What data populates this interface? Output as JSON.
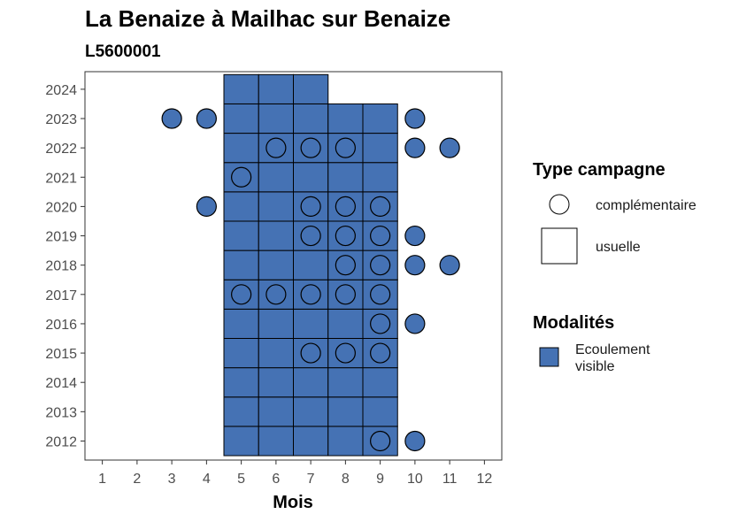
{
  "colors": {
    "fill": "#4572b4",
    "stroke": "#000000",
    "background": "#ffffff",
    "panel_border": "#333333",
    "tick_text": "#4d4d4d"
  },
  "chart_data": {
    "type": "heatmap",
    "title": "La Benaize à Mailhac sur Benaize",
    "subtitle": "L5600001",
    "xlabel": "Mois",
    "ylabel": "",
    "x_ticks": [
      1,
      2,
      3,
      4,
      5,
      6,
      7,
      8,
      9,
      10,
      11,
      12
    ],
    "y_ticks": [
      2012,
      2013,
      2014,
      2015,
      2016,
      2017,
      2018,
      2019,
      2020,
      2021,
      2022,
      2023,
      2024
    ],
    "xlim": [
      0.5,
      12.5
    ],
    "ylim": [
      2011.35,
      2024.6
    ],
    "grid": false,
    "usuelle": {
      "months": [
        5,
        6,
        7,
        8,
        9
      ],
      "years": [
        2012,
        2013,
        2014,
        2015,
        2016,
        2017,
        2018,
        2019,
        2020,
        2021,
        2022,
        2023
      ],
      "extra": [
        {
          "month": 5,
          "year": 2024
        },
        {
          "month": 6,
          "year": 2024
        },
        {
          "month": 7,
          "year": 2024
        }
      ],
      "modalite": "Ecoulement visible"
    },
    "complementaire": [
      {
        "month": 3,
        "year": 2023
      },
      {
        "month": 4,
        "year": 2023
      },
      {
        "month": 10,
        "year": 2023
      },
      {
        "month": 6,
        "year": 2022
      },
      {
        "month": 7,
        "year": 2022
      },
      {
        "month": 8,
        "year": 2022
      },
      {
        "month": 10,
        "year": 2022
      },
      {
        "month": 11,
        "year": 2022
      },
      {
        "month": 5,
        "year": 2021
      },
      {
        "month": 4,
        "year": 2020
      },
      {
        "month": 7,
        "year": 2020
      },
      {
        "month": 8,
        "year": 2020
      },
      {
        "month": 9,
        "year": 2020
      },
      {
        "month": 7,
        "year": 2019
      },
      {
        "month": 8,
        "year": 2019
      },
      {
        "month": 9,
        "year": 2019
      },
      {
        "month": 10,
        "year": 2019
      },
      {
        "month": 8,
        "year": 2018
      },
      {
        "month": 9,
        "year": 2018
      },
      {
        "month": 10,
        "year": 2018
      },
      {
        "month": 11,
        "year": 2018
      },
      {
        "month": 5,
        "year": 2017
      },
      {
        "month": 6,
        "year": 2017
      },
      {
        "month": 7,
        "year": 2017
      },
      {
        "month": 8,
        "year": 2017
      },
      {
        "month": 9,
        "year": 2017
      },
      {
        "month": 9,
        "year": 2016
      },
      {
        "month": 10,
        "year": 2016
      },
      {
        "month": 7,
        "year": 2015
      },
      {
        "month": 8,
        "year": 2015
      },
      {
        "month": 9,
        "year": 2015
      },
      {
        "month": 9,
        "year": 2012
      },
      {
        "month": 10,
        "year": 2012
      }
    ],
    "legend": {
      "type_title": "Type campagne",
      "type_items": [
        "complémentaire",
        "usuelle"
      ],
      "modalites_title": "Modalités",
      "modalites_items": [
        "Ecoulement visible"
      ],
      "placement": "right"
    }
  }
}
